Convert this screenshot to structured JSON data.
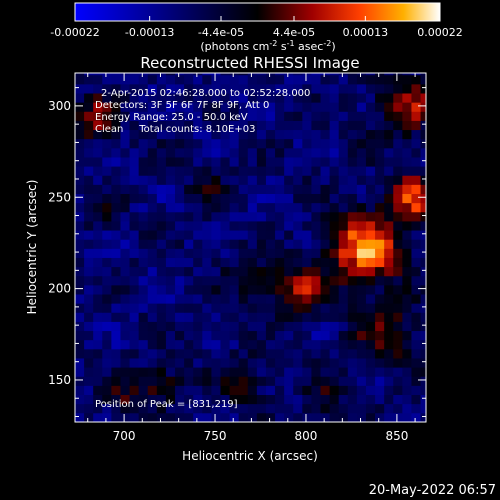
{
  "chart_data": {
    "type": "heatmap",
    "title": "Reconstructed RHESSI Image",
    "xlabel": "Heliocentric X (arcsec)",
    "ylabel": "Heliocentric Y (arcsec)",
    "xlim": [
      673,
      866
    ],
    "ylim": [
      127,
      318
    ],
    "x_ticks": [
      700,
      750,
      800,
      850
    ],
    "y_ticks": [
      150,
      200,
      250,
      300
    ],
    "colorbar": {
      "ticks": [
        "-0.00022",
        "-0.00013",
        "-4.4e-05",
        "4.4e-05",
        "0.00013",
        "0.00022"
      ],
      "tick_values": [
        -0.00022,
        -0.00013,
        -4.4e-05,
        4.4e-05,
        0.00013,
        0.00022
      ],
      "range": [
        -0.00022,
        0.00022
      ],
      "units_prefix": "(photons cm",
      "units_sup1": "-2",
      "units_mid": " s",
      "units_sup2": "-1",
      "units_mid2": " asec",
      "units_sup3": "-2",
      "units_suffix": ")"
    },
    "annotations": [
      "2-Apr-2015 02:46:28.000 to 02:52:28.000",
      "Detectors: 3F 5F 6F 7F 8F 9F, Att 0",
      "Energy Range: 25.0 - 50.0 keV",
      "Clean     Total counts: 8.10E+03"
    ],
    "peak_label": "Position of Peak = [831,219]",
    "peak": [
      831,
      219
    ],
    "sources": [
      {
        "x": 833,
        "y": 222,
        "sigma": 14,
        "amp": 0.00024
      },
      {
        "x": 860,
        "y": 250,
        "sigma": 10,
        "amp": 0.00018
      },
      {
        "x": 855,
        "y": 300,
        "sigma": 12,
        "amp": 0.00014
      },
      {
        "x": 845,
        "y": 175,
        "sigma": 12,
        "amp": 0.00012
      },
      {
        "x": 795,
        "y": 200,
        "sigma": 10,
        "amp": 0.00015
      },
      {
        "x": 770,
        "y": 205,
        "sigma": 9,
        "amp": 9e-05
      },
      {
        "x": 685,
        "y": 293,
        "sigma": 8,
        "amp": 0.00016
      },
      {
        "x": 690,
        "y": 240,
        "sigma": 6,
        "amp": 8e-05
      },
      {
        "x": 765,
        "y": 150,
        "sigma": 9,
        "amp": 0.00011
      },
      {
        "x": 720,
        "y": 148,
        "sigma": 8,
        "amp": 0.00011
      },
      {
        "x": 700,
        "y": 140,
        "sigma": 7,
        "amp": 9e-05
      },
      {
        "x": 745,
        "y": 255,
        "sigma": 8,
        "amp": 6e-05
      },
      {
        "x": 810,
        "y": 140,
        "sigma": 7,
        "amp": 8e-05
      }
    ]
  },
  "footer": {
    "date": "20-May-2022 06:57"
  }
}
